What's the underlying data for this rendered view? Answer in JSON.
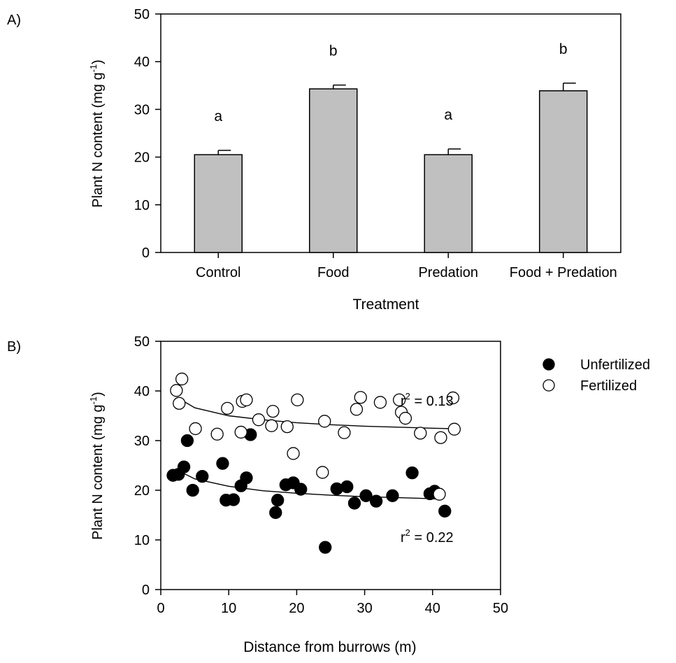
{
  "panels": {
    "a": {
      "label": "A)"
    },
    "b": {
      "label": "B)"
    }
  },
  "chart_data": [
    {
      "type": "bar",
      "panel": "A)",
      "title": "",
      "xlabel": "Treatment",
      "ylabel": "Plant N content (mg g",
      "ylabel_sup": "-1",
      "ylabel_end": ")",
      "categories": [
        "Control",
        "Food",
        "Predation",
        "Food + Predation"
      ],
      "values": [
        20.5,
        34.3,
        20.5,
        33.9
      ],
      "error": [
        0.9,
        0.8,
        1.2,
        1.6
      ],
      "significance_letters": [
        "a",
        "b",
        "a",
        "b"
      ],
      "ylim": [
        0,
        50
      ],
      "yticks": [
        0,
        10,
        20,
        30,
        40,
        50
      ],
      "bar_color": "#c0c0c0",
      "grid": false
    },
    {
      "type": "scatter",
      "panel": "B)",
      "title": "",
      "xlabel": "Distance from burrows (m)",
      "ylabel": "Plant N content (mg g",
      "ylabel_sup": "-1",
      "ylabel_end": ")",
      "xlim": [
        0,
        50
      ],
      "ylim": [
        0,
        50
      ],
      "xticks": [
        0,
        10,
        20,
        30,
        40,
        50
      ],
      "yticks": [
        0,
        10,
        20,
        30,
        40,
        50
      ],
      "legend_position": "right",
      "grid": false,
      "series": [
        {
          "name": "Unfertilized",
          "marker": "filled-circle",
          "color": "#000000",
          "r2_label": "r",
          "r2_sup": "2",
          "r2_value": " = 0.22",
          "fit": [
            [
              2.5,
              24.0
            ],
            [
              5,
              22.3
            ],
            [
              10,
              20.8
            ],
            [
              15,
              19.9
            ],
            [
              20,
              19.4
            ],
            [
              25,
              19.0
            ],
            [
              30,
              18.7
            ],
            [
              35,
              18.5
            ],
            [
              40,
              18.3
            ],
            [
              41,
              18.2
            ]
          ],
          "points": [
            [
              1.8,
              23.0
            ],
            [
              2.6,
              23.2
            ],
            [
              3.4,
              24.7
            ],
            [
              3.9,
              30.0
            ],
            [
              4.7,
              20.0
            ],
            [
              6.1,
              22.8
            ],
            [
              9.1,
              25.4
            ],
            [
              9.6,
              18.0
            ],
            [
              10.7,
              18.1
            ],
            [
              11.8,
              20.9
            ],
            [
              12.6,
              22.5
            ],
            [
              13.2,
              31.2
            ],
            [
              16.9,
              15.5
            ],
            [
              17.2,
              18.0
            ],
            [
              18.4,
              21.1
            ],
            [
              19.5,
              21.5
            ],
            [
              20.6,
              20.2
            ],
            [
              24.2,
              8.5
            ],
            [
              25.9,
              20.3
            ],
            [
              27.4,
              20.7
            ],
            [
              28.5,
              17.4
            ],
            [
              30.2,
              18.9
            ],
            [
              31.7,
              17.8
            ],
            [
              34.1,
              18.9
            ],
            [
              37.0,
              23.5
            ],
            [
              39.6,
              19.3
            ],
            [
              40.3,
              19.8
            ],
            [
              41.8,
              15.8
            ]
          ]
        },
        {
          "name": "Fertilized",
          "marker": "open-circle",
          "color": "#000000",
          "r2_label": "r",
          "r2_sup": "2",
          "r2_value": " = 0.13",
          "fit": [
            [
              2.5,
              38.6
            ],
            [
              5,
              36.6
            ],
            [
              10,
              35.0
            ],
            [
              15,
              34.2
            ],
            [
              20,
              33.6
            ],
            [
              25,
              33.2
            ],
            [
              30,
              32.9
            ],
            [
              35,
              32.7
            ],
            [
              40,
              32.5
            ],
            [
              43,
              32.4
            ]
          ],
          "points": [
            [
              2.3,
              40.1
            ],
            [
              2.7,
              37.5
            ],
            [
              3.1,
              42.4
            ],
            [
              5.1,
              32.4
            ],
            [
              8.3,
              31.3
            ],
            [
              9.8,
              36.5
            ],
            [
              11.8,
              31.7
            ],
            [
              12.0,
              37.9
            ],
            [
              12.6,
              38.2
            ],
            [
              14.4,
              34.2
            ],
            [
              16.3,
              33.0
            ],
            [
              16.5,
              35.9
            ],
            [
              18.6,
              32.8
            ],
            [
              19.5,
              27.4
            ],
            [
              20.1,
              38.2
            ],
            [
              23.8,
              23.6
            ],
            [
              24.1,
              33.9
            ],
            [
              27.0,
              31.6
            ],
            [
              28.8,
              36.3
            ],
            [
              29.4,
              38.7
            ],
            [
              32.3,
              37.7
            ],
            [
              35.1,
              38.2
            ],
            [
              35.4,
              35.7
            ],
            [
              36.0,
              34.5
            ],
            [
              38.2,
              31.5
            ],
            [
              41.2,
              30.6
            ],
            [
              41.0,
              19.2
            ],
            [
              43.2,
              32.3
            ],
            [
              43.0,
              38.6
            ]
          ]
        }
      ]
    }
  ]
}
